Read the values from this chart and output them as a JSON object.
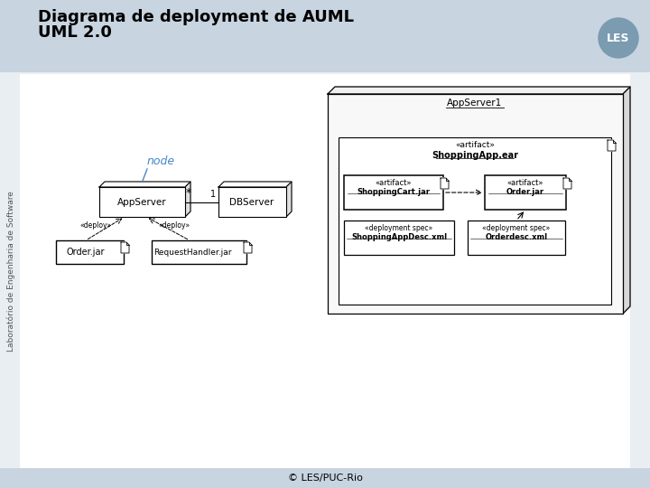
{
  "title_line1": "Diagrama de deployment de AUML",
  "title_line2": "UML 2.0",
  "title_fontsize": 13,
  "footer": "© LES/PUC-Rio",
  "bg_color": "#e8eef2",
  "header_color": "#c8d4e0",
  "sidebar_text": "Laboratório de Engenharia de Software",
  "logo_text": "LES",
  "node_label": "node",
  "appserver_label": "AppServer",
  "dbserver_label": "DBServer",
  "order_jar_label": "Order.jar",
  "request_handler_jar_label": "RequestHandler.jar",
  "deploy1_label": "«deploy»",
  "deploy2_label": "«deploy»",
  "appserver1_label": "AppServer1",
  "artifact_stereo": "«artifact»",
  "shoppingapp_label": "ShoppingApp.ear",
  "shoppingcart_label": "ShoppingCart.jar",
  "order_jar2_label": "Order.jar",
  "dep_spec_stereo": "«deployment spec»",
  "dep_spec1_label": "ShoppingAppDesc.xml",
  "dep_spec2_label": "Orderdesc.xml"
}
